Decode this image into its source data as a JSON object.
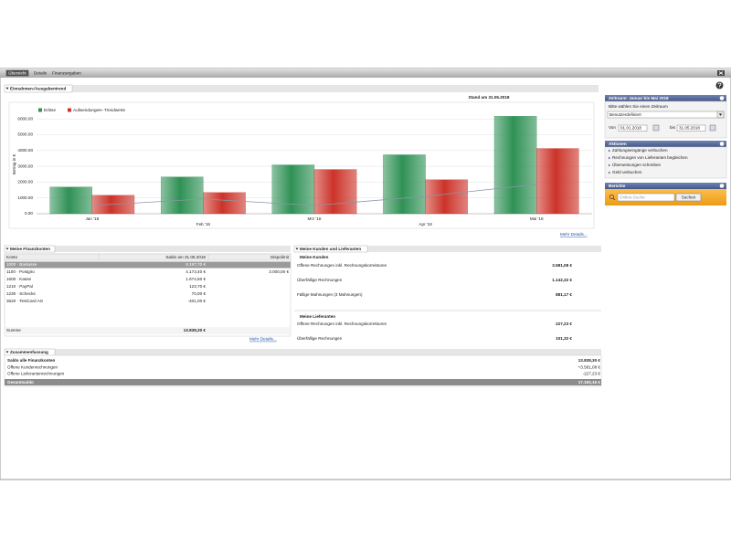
{
  "tabs": [
    "Übersicht",
    "Details",
    "Finanzangaben"
  ],
  "trend_section": {
    "title": "Einnahmen-/Ausgabentrend",
    "stand": "Stand am 31.05.2018",
    "more": "Mehr Details..."
  },
  "chart_data": {
    "type": "bar",
    "y_label": "Betrag in €",
    "categories": [
      "Jan '18",
      "Feb '18",
      "Mrz '18",
      "Apr '18",
      "Mai '18"
    ],
    "series": [
      {
        "name": "Erlöse",
        "color": "#2f9155",
        "values": [
          1690,
          2330,
          3090,
          3730,
          6170
        ]
      },
      {
        "name": "Aufwendungen",
        "color": "#cc3329",
        "values": [
          1165,
          1340,
          2800,
          2150,
          4130
        ]
      },
      {
        "name": "Trendwerte",
        "color": "#8a96a8",
        "type": "line",
        "values": [
          520,
          930,
          520,
          1100,
          1860
        ]
      }
    ],
    "ylim": [
      0,
      6300
    ],
    "yticks": [
      {
        "value": 0,
        "label": "0.00"
      },
      {
        "value": 1000,
        "label": "1000.00"
      },
      {
        "value": 2000,
        "label": "2000.00"
      },
      {
        "value": 3000,
        "label": "3000.00"
      },
      {
        "value": 4000,
        "label": "4000.00"
      },
      {
        "value": 5000,
        "label": "5000.00"
      },
      {
        "value": 6000,
        "label": "6000.00"
      }
    ],
    "grid": true
  },
  "period": {
    "title": "Zeitraum: Januar bis Mai 2018",
    "prompt": "Bitte wählen Sie einen Zeitraum",
    "selection": "Benutzerdefiniert",
    "from_label": "Von",
    "from": "01.01.2018",
    "to_label": "bis",
    "to": "31.05.2018"
  },
  "actions": {
    "title": "Aktionen",
    "items": [
      "Zahlungseingänge verbuchen",
      "Rechnungen von Lieferanten begleichen",
      "Überweisungen schreiben",
      "Geld umbuchen"
    ]
  },
  "reports": {
    "title": "Berichte",
    "search_placeholder": "Online-Suche",
    "search_button": "Suchen"
  },
  "accounts": {
    "title": "Meine Finanzkonten",
    "header": [
      "Konto",
      "Saldo am 31.05.2018",
      "Dispolimit"
    ],
    "rows": [
      {
        "konto": "1000 · Barkasse",
        "saldo": "8.197,70 €"
      },
      {
        "konto": "1100 · Postgiro",
        "saldo": "4.173,40 €",
        "dispo": "3.000,00 €"
      },
      {
        "konto": "1600 · Kasse",
        "saldo": "1.674,50 €"
      },
      {
        "konto": "1210 · PayPal",
        "saldo": "123,70 €"
      },
      {
        "konto": "1230 · Schecks",
        "saldo": "70,00 €"
      },
      {
        "konto": "3620 · TestCard AG",
        "saldo": "-401,00 €"
      }
    ],
    "sum_label": "Summe",
    "sum": "13.838,30 €",
    "more": "Mehr Details..."
  },
  "customers": {
    "title": "Meine Kunden und Lieferanten",
    "kunden_title": "Meine Kunden",
    "kunden": [
      {
        "label": "Offene Rechnungen inkl. Rechnungskorrekturen",
        "value": "3.581,08 €"
      },
      {
        "label": "Überfällige Rechnungen",
        "value": "1.142,32 €"
      },
      {
        "label": "Fällige Mahnungen (3 Mahnungen)",
        "value": "881,17 €"
      }
    ],
    "lieferanten_title": "Meine Lieferanten",
    "lieferanten": [
      {
        "label": "Offene Rechnungen inkl. Rechnungskorrekturen",
        "value": "227,23 €"
      },
      {
        "label": "Überfällige Rechnungen",
        "value": "101,32 €"
      }
    ]
  },
  "summary": {
    "title": "Zusammenfassung",
    "rows": [
      {
        "label": "Saldo alle Finanzkonten",
        "value": "13.838,30 €"
      },
      {
        "label": "Offene Kundenrechnungen",
        "value": "+3.581,08 €"
      },
      {
        "label": "Offene Lieferantenrechnungen",
        "value": "-227,23 €"
      }
    ],
    "total_label": "Gesamtsaldo",
    "total": "17.192,15 €"
  }
}
